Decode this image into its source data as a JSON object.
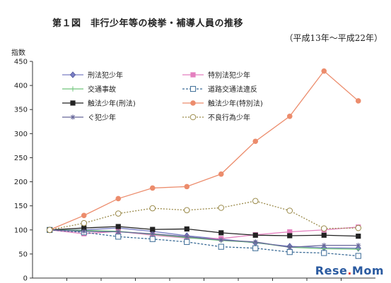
{
  "header": {
    "title": "第１図　非行少年等の検挙・補導人員の推移",
    "period": "（平成13年～平成22年）"
  },
  "watermark": {
    "prefix": "Rese",
    "suffix": "Mom",
    "dot": "."
  },
  "chart_data": {
    "type": "line",
    "title": "第１図　非行少年等の検挙・補導人員の推移",
    "subtitle": "（平成13年～平成22年）",
    "ylabel": "指数",
    "xlabel": "",
    "ylim": [
      0,
      450
    ],
    "yticks": [
      0,
      50,
      100,
      150,
      200,
      250,
      300,
      350,
      400,
      450
    ],
    "x": [
      1,
      2,
      3,
      4,
      5,
      6,
      7,
      8,
      9,
      10
    ],
    "grid": false,
    "legend_position": "top-left",
    "series": [
      {
        "name": "刑法犯少年",
        "color": "#7a7fc4",
        "marker": "diamond",
        "dash": "",
        "values": [
          100,
          100,
          104,
          97,
          88,
          81,
          73,
          66,
          63,
          62
        ]
      },
      {
        "name": "特別法犯少年",
        "color": "#e47fbf",
        "marker": "square-filled",
        "dash": "",
        "values": [
          100,
          92,
          97,
          89,
          83,
          82,
          90,
          96,
          100,
          106
        ]
      },
      {
        "name": "交通事故",
        "color": "#6fc47a",
        "marker": "plus",
        "dash": "",
        "values": [
          100,
          99,
          97,
          91,
          84,
          78,
          74,
          64,
          61,
          60
        ]
      },
      {
        "name": "道路交通法違反",
        "color": "#3a6b96",
        "marker": "square-open",
        "dash": "3,2",
        "values": [
          100,
          95,
          86,
          81,
          75,
          65,
          62,
          54,
          52,
          46
        ]
      },
      {
        "name": "触法少年(刑法)",
        "color": "#222222",
        "marker": "square-black",
        "dash": "",
        "values": [
          100,
          104,
          107,
          101,
          102,
          94,
          89,
          88,
          89,
          87
        ]
      },
      {
        "name": "触法少年(特別法)",
        "color": "#ec8c6c",
        "marker": "circle-filled",
        "dash": "",
        "values": [
          100,
          130,
          165,
          187,
          190,
          216,
          284,
          336,
          430,
          368
        ]
      },
      {
        "name": "ぐ犯少年",
        "color": "#666699",
        "marker": "asterisk",
        "dash": "",
        "values": [
          100,
          97,
          96,
          92,
          86,
          79,
          75,
          64,
          68,
          68
        ]
      },
      {
        "name": "不良行為少年",
        "color": "#9a8a4a",
        "marker": "circle-open",
        "dash": "2,2",
        "values": [
          100,
          114,
          134,
          145,
          141,
          146,
          160,
          140,
          103,
          104
        ]
      }
    ]
  }
}
